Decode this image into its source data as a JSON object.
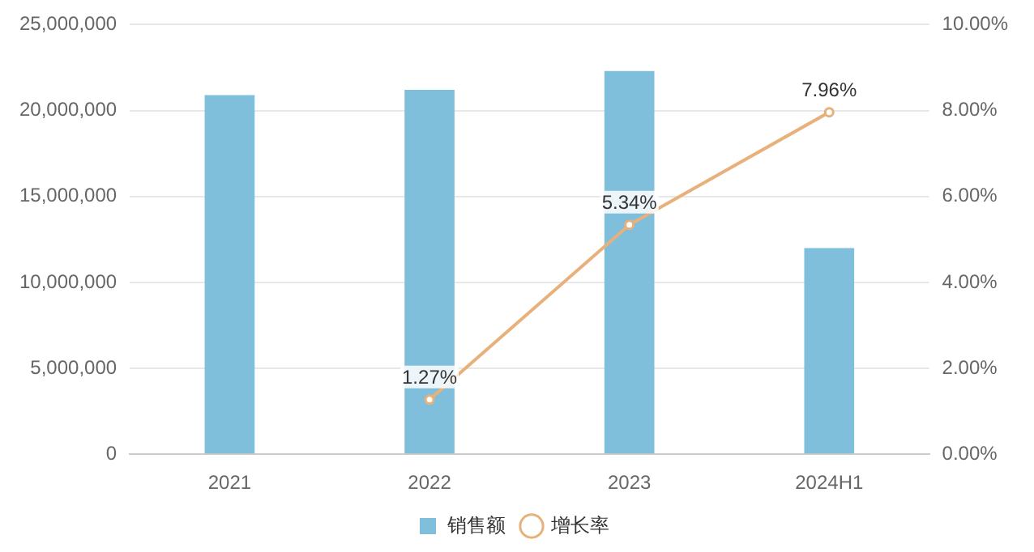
{
  "chart_data": {
    "type": "bar",
    "categories": [
      "2021",
      "2022",
      "2023",
      "2024H1"
    ],
    "series": [
      {
        "name": "销售额",
        "color": "#7fbfdb",
        "values": [
          20900000,
          21200000,
          22300000,
          12000000
        ]
      },
      {
        "name": "增长率",
        "type": "line",
        "axis": "y2",
        "color": "#e8b07a",
        "values": [
          null,
          1.27,
          5.34,
          7.96
        ],
        "value_labels": [
          null,
          "1.27%",
          "5.34%",
          "7.96%"
        ]
      }
    ],
    "ylim": [
      0,
      25000000
    ],
    "yticks": [
      {
        "value": 0,
        "label": "0"
      },
      {
        "value": 5000000,
        "label": "5,000,000"
      },
      {
        "value": 10000000,
        "label": "10,000,000"
      },
      {
        "value": 15000000,
        "label": "15,000,000"
      },
      {
        "value": 20000000,
        "label": "20,000,000"
      },
      {
        "value": 25000000,
        "label": "25,000,000"
      }
    ],
    "y2lim": [
      0,
      10
    ],
    "y2ticks": [
      {
        "value": 0,
        "label": "0.00%"
      },
      {
        "value": 2,
        "label": "2.00%"
      },
      {
        "value": 4,
        "label": "4.00%"
      },
      {
        "value": 6,
        "label": "6.00%"
      },
      {
        "value": 8,
        "label": "8.00%"
      },
      {
        "value": 10,
        "label": "10.00%"
      }
    ],
    "grid": "y",
    "legend": "bottom",
    "marker": "circle"
  }
}
